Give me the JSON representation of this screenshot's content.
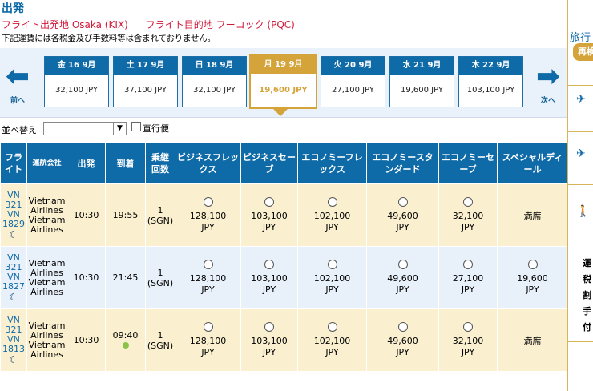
{
  "header": {
    "title": "出発",
    "origin": "フライト出発地 Osaka (KIX)",
    "destination": "フライト目的地 フーコック (PQC)",
    "note": "下記運賃には各税金及び手数料等は含まれておりません。"
  },
  "nav": {
    "prev_label": "前へ",
    "next_label": "次へ"
  },
  "dates": [
    {
      "label": "金 16 9月",
      "price": "32,100 JPY",
      "selected": false
    },
    {
      "label": "土 17 9月",
      "price": "37,100 JPY",
      "selected": false
    },
    {
      "label": "日 18 9月",
      "price": "32,100 JPY",
      "selected": false
    },
    {
      "label": "月 19 9月",
      "price": "19,600 JPY",
      "selected": true
    },
    {
      "label": "火 20 9月",
      "price": "27,100 JPY",
      "selected": false
    },
    {
      "label": "水 21 9月",
      "price": "19,600 JPY",
      "selected": false
    },
    {
      "label": "木 22 9月",
      "price": "103,100 JPY",
      "selected": false
    }
  ],
  "filter": {
    "sort_label": "並べ替え",
    "sort_value": "",
    "direct_label": "直行便"
  },
  "columns": [
    "フライト",
    "運航会社",
    "出発",
    "到着",
    "乗継回数",
    "ビジネスフレックス",
    "ビジネスセーブ",
    "エコノミーフレックス",
    "エコノミースタンダード",
    "エコノミーセーブ",
    "スペシャルディール"
  ],
  "flights": [
    {
      "flight1": "VN 321",
      "flight2": "VN 1829",
      "airline": "Vietnam Airlines Vietnam Airlines",
      "depart": "10:30",
      "arrive": "19:55",
      "stops": "1",
      "via": "(SGN)",
      "fares": [
        "128,100",
        "103,100",
        "102,100",
        "49,600",
        "32,100"
      ],
      "special": "満席",
      "arrive_next_day": false
    },
    {
      "flight1": "VN 321",
      "flight2": "VN 1827",
      "airline": "Vietnam Airlines Vietnam Airlines",
      "depart": "10:30",
      "arrive": "21:45",
      "stops": "1",
      "via": "(SGN)",
      "fares": [
        "128,100",
        "103,100",
        "102,100",
        "49,600",
        "27,100"
      ],
      "special": "19,600",
      "arrive_next_day": false
    },
    {
      "flight1": "VN 321",
      "flight2": "VN 1813",
      "airline": "Vietnam Airlines Vietnam Airlines",
      "depart": "10:30",
      "arrive": "09:40",
      "stops": "1",
      "via": "(SGN)",
      "fares": [
        "128,100",
        "103,100",
        "102,100",
        "49,600",
        "32,100"
      ],
      "special": "満席",
      "arrive_next_day": true
    }
  ],
  "currency": "JPY",
  "side_panel": {
    "title": "旅行",
    "button": "再検",
    "text_lines": [
      "運",
      "税",
      "割",
      "手",
      "付"
    ]
  }
}
